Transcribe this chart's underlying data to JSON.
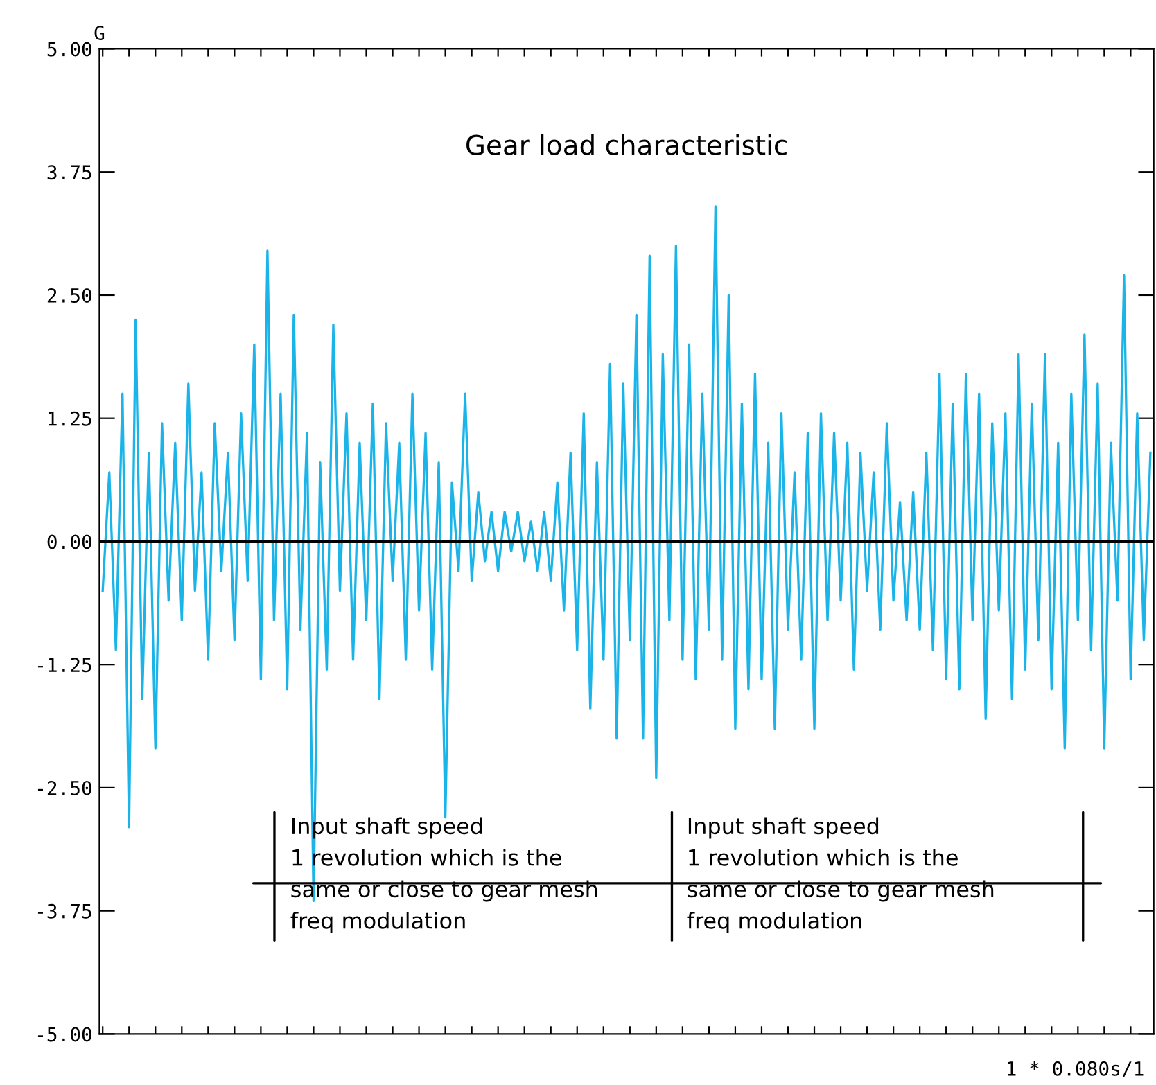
{
  "chart_data": {
    "type": "line",
    "title": "Gear load characteristic",
    "ylabel": "G",
    "xlabel": "1 * 0.080s/1",
    "annotations": [
      "Input shaft speed\n1 revolution which is the\nsame or close to gear mesh\nfreq modulation",
      "Input shaft speed\n1 revolution which is the\nsame or close to gear mesh\nfreq modulation"
    ],
    "categories": [
      null,
      null,
      null,
      null,
      null,
      null,
      null,
      null,
      null,
      null,
      null,
      null,
      null,
      null,
      null,
      null,
      null,
      null,
      null,
      null,
      null,
      null,
      null,
      null,
      null,
      null,
      null,
      null,
      null,
      null,
      null,
      null,
      null,
      null,
      null,
      null,
      null,
      null,
      null,
      null,
      null,
      null,
      null,
      null,
      null,
      null,
      null,
      null,
      null,
      null,
      null,
      null,
      null,
      null,
      null,
      null,
      null,
      null,
      null,
      null,
      null,
      null,
      null,
      null,
      null,
      null,
      null,
      null,
      null,
      null,
      null,
      null,
      null,
      null,
      null,
      null,
      null,
      null,
      null,
      null,
      null,
      null,
      null,
      null,
      null,
      null,
      null,
      null,
      null,
      null,
      null,
      null,
      null,
      null,
      null,
      null,
      null,
      null,
      null,
      null,
      null,
      null,
      null,
      null,
      null,
      null,
      null,
      null,
      null,
      null,
      null,
      null,
      null,
      null,
      null,
      null,
      null,
      null,
      null,
      null,
      null,
      null,
      null,
      null,
      null,
      null,
      null,
      null,
      null,
      null,
      null,
      null,
      null,
      null,
      null,
      null,
      null,
      null,
      null,
      null,
      null,
      null,
      null,
      null,
      null,
      null,
      null,
      null,
      null,
      null,
      null,
      null,
      null,
      null,
      null,
      null,
      null,
      null,
      null,
      null
    ],
    "series": [
      {
        "color": "#1ab4e8",
        "values": [
          -0.5,
          0.7,
          -1.1,
          1.5,
          -2.9,
          2.25,
          -1.6,
          0.9,
          -2.1,
          1.2,
          -0.6,
          1.0,
          -0.8,
          1.6,
          -0.5,
          0.7,
          -1.2,
          1.2,
          -0.3,
          0.9,
          -1.0,
          1.3,
          -0.4,
          2.0,
          -1.4,
          2.95,
          -0.8,
          1.5,
          -1.5,
          2.3,
          -0.9,
          1.1,
          -3.65,
          0.8,
          -1.3,
          2.2,
          -0.5,
          1.3,
          -1.2,
          1.0,
          -0.8,
          1.4,
          -1.6,
          1.2,
          -0.4,
          1.0,
          -1.2,
          1.5,
          -0.7,
          1.1,
          -1.3,
          0.8,
          -2.8,
          0.6,
          -0.3,
          1.5,
          -0.4,
          0.5,
          -0.2,
          0.3,
          -0.3,
          0.3,
          -0.1,
          0.3,
          -0.2,
          0.2,
          -0.3,
          0.3,
          -0.4,
          0.6,
          -0.7,
          0.9,
          -1.1,
          1.3,
          -1.7,
          0.8,
          -1.2,
          1.8,
          -2.0,
          1.6,
          -1.0,
          2.3,
          -2.0,
          2.9,
          -2.4,
          1.9,
          -0.8,
          3.0,
          -1.2,
          2.0,
          -1.4,
          1.5,
          -0.9,
          3.4,
          -1.2,
          2.5,
          -1.9,
          1.4,
          -1.5,
          1.7,
          -1.4,
          1.0,
          -1.9,
          1.3,
          -0.9,
          0.7,
          -1.2,
          1.1,
          -1.9,
          1.3,
          -0.8,
          1.1,
          -0.6,
          1.0,
          -1.3,
          0.9,
          -0.5,
          0.7,
          -0.9,
          1.2,
          -0.6,
          0.4,
          -0.8,
          0.5,
          -0.9,
          0.9,
          -1.1,
          1.7,
          -1.4,
          1.4,
          -1.5,
          1.7,
          -0.8,
          1.5,
          -1.8,
          1.2,
          -0.7,
          1.3,
          -1.6,
          1.9,
          -1.3,
          1.4,
          -1.0,
          1.9,
          -1.5,
          1.0,
          -2.1,
          1.5,
          -0.8,
          2.1,
          -1.1,
          1.6,
          -2.1,
          1.0,
          -0.6,
          2.7,
          -1.4,
          1.3,
          -1.0,
          0.9
        ]
      }
    ],
    "ylim": [
      -5,
      5
    ],
    "yticks": [
      {
        "value": 5,
        "label": "5.00"
      },
      {
        "value": 3.75,
        "label": "3.75"
      },
      {
        "value": 2.5,
        "label": "2.50"
      },
      {
        "value": 1.25,
        "label": "1.25"
      },
      {
        "value": 0,
        "label": "0.00"
      },
      {
        "value": -1.25,
        "label": "-1.25"
      },
      {
        "value": -2.5,
        "label": "-2.50"
      },
      {
        "value": -3.75,
        "label": "-3.75"
      },
      {
        "value": -5,
        "label": "-5.00"
      }
    ],
    "ref_lines": [
      {
        "axis": "y",
        "value": 0,
        "color": "#000000"
      }
    ],
    "tick_labels": "y",
    "grid": false,
    "legend": false,
    "marker": "none",
    "line_style": "solid"
  }
}
